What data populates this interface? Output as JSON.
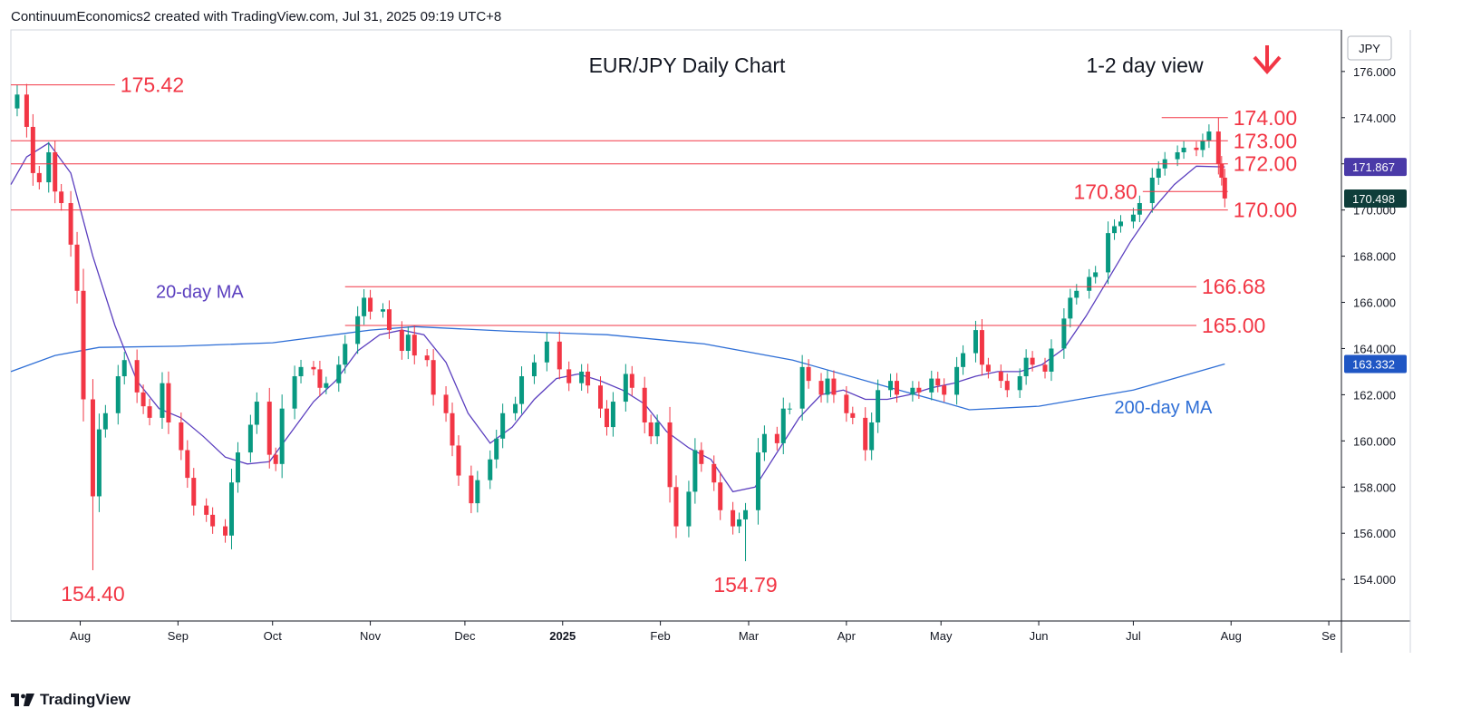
{
  "header": {
    "attribution": "ContinuumEconomics2 created with TradingView.com, Jul 31, 2025 09:19 UTC+8"
  },
  "footer": {
    "brand": "TradingView"
  },
  "chart_data": {
    "type": "candlestick",
    "title": "EUR/JPY Daily Chart",
    "subtitle": "1-2 day view",
    "currency": "JPY",
    "ylim": [
      152.2,
      177.8
    ],
    "y_ticks": [
      "176.000",
      "174.000",
      "172.000",
      "170.000",
      "168.000",
      "166.000",
      "164.000",
      "162.000",
      "160.000",
      "158.000",
      "156.000",
      "154.000"
    ],
    "x_range": [
      "2024-07-10",
      "2025-09-05"
    ],
    "x_ticks": [
      {
        "label": "Aug",
        "date": "2024-08-01",
        "bold": false
      },
      {
        "label": "Sep",
        "date": "2024-09-01",
        "bold": false
      },
      {
        "label": "Oct",
        "date": "2024-10-01",
        "bold": false
      },
      {
        "label": "Nov",
        "date": "2024-11-01",
        "bold": false
      },
      {
        "label": "Dec",
        "date": "2024-12-01",
        "bold": false
      },
      {
        "label": "2025",
        "date": "2025-01-01",
        "bold": true
      },
      {
        "label": "Feb",
        "date": "2025-02-01",
        "bold": false
      },
      {
        "label": "Mar",
        "date": "2025-03-01",
        "bold": false
      },
      {
        "label": "Apr",
        "date": "2025-04-01",
        "bold": false
      },
      {
        "label": "May",
        "date": "2025-05-01",
        "bold": false
      },
      {
        "label": "Jun",
        "date": "2025-06-01",
        "bold": false
      },
      {
        "label": "Jul",
        "date": "2025-07-01",
        "bold": false
      },
      {
        "label": "Aug",
        "date": "2025-08-01",
        "bold": false
      },
      {
        "label": "Se",
        "date": "2025-09-01",
        "bold": false
      }
    ],
    "closes": [
      {
        "d": "2024-07-10",
        "c": 174.4
      },
      {
        "d": "2024-07-12",
        "c": 175.0
      },
      {
        "d": "2024-07-15",
        "c": 173.6
      },
      {
        "d": "2024-07-17",
        "c": 171.6
      },
      {
        "d": "2024-07-19",
        "c": 171.2
      },
      {
        "d": "2024-07-22",
        "c": 172.5
      },
      {
        "d": "2024-07-24",
        "c": 170.8
      },
      {
        "d": "2024-07-26",
        "c": 170.3
      },
      {
        "d": "2024-07-29",
        "c": 168.5
      },
      {
        "d": "2024-07-31",
        "c": 166.5
      },
      {
        "d": "2024-08-02",
        "c": 161.8
      },
      {
        "d": "2024-08-05",
        "c": 157.6
      },
      {
        "d": "2024-08-07",
        "c": 160.5
      },
      {
        "d": "2024-08-09",
        "c": 161.2
      },
      {
        "d": "2024-08-13",
        "c": 162.8
      },
      {
        "d": "2024-08-15",
        "c": 163.5
      },
      {
        "d": "2024-08-19",
        "c": 162.1
      },
      {
        "d": "2024-08-21",
        "c": 161.5
      },
      {
        "d": "2024-08-23",
        "c": 161.0
      },
      {
        "d": "2024-08-27",
        "c": 162.5
      },
      {
        "d": "2024-08-29",
        "c": 160.8
      },
      {
        "d": "2024-09-02",
        "c": 159.6
      },
      {
        "d": "2024-09-04",
        "c": 158.4
      },
      {
        "d": "2024-09-06",
        "c": 157.2
      },
      {
        "d": "2024-09-10",
        "c": 156.8
      },
      {
        "d": "2024-09-12",
        "c": 156.3
      },
      {
        "d": "2024-09-16",
        "c": 155.9
      },
      {
        "d": "2024-09-18",
        "c": 158.2
      },
      {
        "d": "2024-09-20",
        "c": 159.5
      },
      {
        "d": "2024-09-24",
        "c": 160.7
      },
      {
        "d": "2024-09-26",
        "c": 161.7
      },
      {
        "d": "2024-09-30",
        "c": 159.4
      },
      {
        "d": "2024-10-02",
        "c": 159.0
      },
      {
        "d": "2024-10-04",
        "c": 161.4
      },
      {
        "d": "2024-10-08",
        "c": 162.8
      },
      {
        "d": "2024-10-10",
        "c": 163.2
      },
      {
        "d": "2024-10-14",
        "c": 163.1
      },
      {
        "d": "2024-10-16",
        "c": 162.3
      },
      {
        "d": "2024-10-18",
        "c": 162.5
      },
      {
        "d": "2024-10-22",
        "c": 163.3
      },
      {
        "d": "2024-10-24",
        "c": 164.2
      },
      {
        "d": "2024-10-28",
        "c": 165.4
      },
      {
        "d": "2024-10-30",
        "c": 166.2
      },
      {
        "d": "2024-11-01",
        "c": 165.6
      },
      {
        "d": "2024-11-05",
        "c": 165.7
      },
      {
        "d": "2024-11-07",
        "c": 164.8
      },
      {
        "d": "2024-11-11",
        "c": 163.9
      },
      {
        "d": "2024-11-13",
        "c": 164.6
      },
      {
        "d": "2024-11-15",
        "c": 163.7
      },
      {
        "d": "2024-11-19",
        "c": 163.5
      },
      {
        "d": "2024-11-21",
        "c": 162.0
      },
      {
        "d": "2024-11-25",
        "c": 161.2
      },
      {
        "d": "2024-11-27",
        "c": 159.8
      },
      {
        "d": "2024-11-29",
        "c": 158.5
      },
      {
        "d": "2024-12-03",
        "c": 157.3
      },
      {
        "d": "2024-12-05",
        "c": 158.3
      },
      {
        "d": "2024-12-09",
        "c": 159.2
      },
      {
        "d": "2024-12-11",
        "c": 160.1
      },
      {
        "d": "2024-12-13",
        "c": 161.2
      },
      {
        "d": "2024-12-17",
        "c": 161.6
      },
      {
        "d": "2024-12-19",
        "c": 162.8
      },
      {
        "d": "2024-12-23",
        "c": 163.4
      },
      {
        "d": "2024-12-27",
        "c": 164.3
      },
      {
        "d": "2024-12-31",
        "c": 163.1
      },
      {
        "d": "2025-01-03",
        "c": 162.5
      },
      {
        "d": "2025-01-07",
        "c": 163.0
      },
      {
        "d": "2025-01-09",
        "c": 162.4
      },
      {
        "d": "2025-01-13",
        "c": 161.4
      },
      {
        "d": "2025-01-15",
        "c": 160.6
      },
      {
        "d": "2025-01-17",
        "c": 161.7
      },
      {
        "d": "2025-01-21",
        "c": 162.9
      },
      {
        "d": "2025-01-23",
        "c": 162.3
      },
      {
        "d": "2025-01-27",
        "c": 160.8
      },
      {
        "d": "2025-01-29",
        "c": 160.2
      },
      {
        "d": "2025-01-31",
        "c": 160.8
      },
      {
        "d": "2025-02-04",
        "c": 158.0
      },
      {
        "d": "2025-02-06",
        "c": 156.3
      },
      {
        "d": "2025-02-10",
        "c": 157.8
      },
      {
        "d": "2025-02-12",
        "c": 159.6
      },
      {
        "d": "2025-02-14",
        "c": 159.0
      },
      {
        "d": "2025-02-18",
        "c": 158.2
      },
      {
        "d": "2025-02-20",
        "c": 157.0
      },
      {
        "d": "2025-02-24",
        "c": 156.3
      },
      {
        "d": "2025-02-26",
        "c": 156.6
      },
      {
        "d": "2025-02-28",
        "c": 157.0
      },
      {
        "d": "2025-03-04",
        "c": 159.5
      },
      {
        "d": "2025-03-06",
        "c": 160.3
      },
      {
        "d": "2025-03-10",
        "c": 159.9
      },
      {
        "d": "2025-03-12",
        "c": 161.4
      },
      {
        "d": "2025-03-14",
        "c": 161.4
      },
      {
        "d": "2025-03-18",
        "c": 163.2
      },
      {
        "d": "2025-03-20",
        "c": 162.6
      },
      {
        "d": "2025-03-24",
        "c": 162.0
      },
      {
        "d": "2025-03-26",
        "c": 162.7
      },
      {
        "d": "2025-03-28",
        "c": 162.0
      },
      {
        "d": "2025-04-01",
        "c": 161.2
      },
      {
        "d": "2025-04-03",
        "c": 161.0
      },
      {
        "d": "2025-04-07",
        "c": 159.6
      },
      {
        "d": "2025-04-09",
        "c": 160.8
      },
      {
        "d": "2025-04-11",
        "c": 162.2
      },
      {
        "d": "2025-04-15",
        "c": 162.6
      },
      {
        "d": "2025-04-17",
        "c": 162.0
      },
      {
        "d": "2025-04-22",
        "c": 162.3
      },
      {
        "d": "2025-04-24",
        "c": 162.1
      },
      {
        "d": "2025-04-28",
        "c": 162.7
      },
      {
        "d": "2025-04-30",
        "c": 162.4
      },
      {
        "d": "2025-05-02",
        "c": 162.0
      },
      {
        "d": "2025-05-06",
        "c": 163.2
      },
      {
        "d": "2025-05-08",
        "c": 163.8
      },
      {
        "d": "2025-05-12",
        "c": 164.8
      },
      {
        "d": "2025-05-14",
        "c": 163.3
      },
      {
        "d": "2025-05-16",
        "c": 163.0
      },
      {
        "d": "2025-05-20",
        "c": 162.6
      },
      {
        "d": "2025-05-22",
        "c": 162.2
      },
      {
        "d": "2025-05-26",
        "c": 162.8
      },
      {
        "d": "2025-05-28",
        "c": 163.6
      },
      {
        "d": "2025-05-30",
        "c": 163.3
      },
      {
        "d": "2025-06-03",
        "c": 163.0
      },
      {
        "d": "2025-06-05",
        "c": 164.0
      },
      {
        "d": "2025-06-09",
        "c": 165.3
      },
      {
        "d": "2025-06-11",
        "c": 166.2
      },
      {
        "d": "2025-06-13",
        "c": 166.5
      },
      {
        "d": "2025-06-17",
        "c": 167.1
      },
      {
        "d": "2025-06-19",
        "c": 167.3
      },
      {
        "d": "2025-06-23",
        "c": 169.0
      },
      {
        "d": "2025-06-25",
        "c": 169.3
      },
      {
        "d": "2025-06-27",
        "c": 169.5
      },
      {
        "d": "2025-07-01",
        "c": 169.8
      },
      {
        "d": "2025-07-03",
        "c": 170.3
      },
      {
        "d": "2025-07-07",
        "c": 171.4
      },
      {
        "d": "2025-07-09",
        "c": 171.8
      },
      {
        "d": "2025-07-11",
        "c": 172.2
      },
      {
        "d": "2025-07-15",
        "c": 172.5
      },
      {
        "d": "2025-07-17",
        "c": 172.7
      },
      {
        "d": "2025-07-21",
        "c": 172.6
      },
      {
        "d": "2025-07-23",
        "c": 173.0
      },
      {
        "d": "2025-07-25",
        "c": 173.4
      },
      {
        "d": "2025-07-28",
        "c": 172.0
      },
      {
        "d": "2025-07-29",
        "c": 171.4
      },
      {
        "d": "2025-07-30",
        "c": 170.5
      }
    ],
    "extremes": [
      {
        "d": "2024-07-12",
        "v": 175.42
      },
      {
        "d": "2024-08-05",
        "v": 154.4
      },
      {
        "d": "2025-02-28",
        "v": 154.79
      },
      {
        "d": "2025-07-28",
        "v": 174.0
      }
    ],
    "ma20": [
      {
        "d": "2024-07-10",
        "v": 171.1
      },
      {
        "d": "2024-07-15",
        "v": 172.3
      },
      {
        "d": "2024-07-22",
        "v": 172.9
      },
      {
        "d": "2024-07-29",
        "v": 171.6
      },
      {
        "d": "2024-08-05",
        "v": 168.0
      },
      {
        "d": "2024-08-12",
        "v": 165.0
      },
      {
        "d": "2024-08-19",
        "v": 162.6
      },
      {
        "d": "2024-08-26",
        "v": 161.4
      },
      {
        "d": "2024-09-02",
        "v": 161.0
      },
      {
        "d": "2024-09-09",
        "v": 160.2
      },
      {
        "d": "2024-09-16",
        "v": 159.3
      },
      {
        "d": "2024-09-23",
        "v": 159.0
      },
      {
        "d": "2024-09-30",
        "v": 159.1
      },
      {
        "d": "2024-10-07",
        "v": 160.4
      },
      {
        "d": "2024-10-14",
        "v": 161.7
      },
      {
        "d": "2024-10-21",
        "v": 162.6
      },
      {
        "d": "2024-10-28",
        "v": 163.9
      },
      {
        "d": "2024-11-04",
        "v": 164.6
      },
      {
        "d": "2024-11-11",
        "v": 164.8
      },
      {
        "d": "2024-11-18",
        "v": 164.6
      },
      {
        "d": "2024-11-25",
        "v": 163.4
      },
      {
        "d": "2024-12-02",
        "v": 161.2
      },
      {
        "d": "2024-12-09",
        "v": 159.9
      },
      {
        "d": "2024-12-16",
        "v": 160.6
      },
      {
        "d": "2024-12-23",
        "v": 161.8
      },
      {
        "d": "2024-12-30",
        "v": 162.7
      },
      {
        "d": "2025-01-06",
        "v": 162.9
      },
      {
        "d": "2025-01-13",
        "v": 162.6
      },
      {
        "d": "2025-01-20",
        "v": 162.2
      },
      {
        "d": "2025-01-27",
        "v": 161.6
      },
      {
        "d": "2025-02-03",
        "v": 160.4
      },
      {
        "d": "2025-02-10",
        "v": 159.7
      },
      {
        "d": "2025-02-17",
        "v": 159.2
      },
      {
        "d": "2025-02-24",
        "v": 157.8
      },
      {
        "d": "2025-03-03",
        "v": 158.0
      },
      {
        "d": "2025-03-10",
        "v": 159.5
      },
      {
        "d": "2025-03-17",
        "v": 161.0
      },
      {
        "d": "2025-03-24",
        "v": 162.0
      },
      {
        "d": "2025-03-31",
        "v": 162.2
      },
      {
        "d": "2025-04-07",
        "v": 161.8
      },
      {
        "d": "2025-04-14",
        "v": 161.8
      },
      {
        "d": "2025-04-21",
        "v": 162.0
      },
      {
        "d": "2025-04-28",
        "v": 162.3
      },
      {
        "d": "2025-05-05",
        "v": 162.5
      },
      {
        "d": "2025-05-12",
        "v": 162.8
      },
      {
        "d": "2025-05-19",
        "v": 163.0
      },
      {
        "d": "2025-05-26",
        "v": 163.0
      },
      {
        "d": "2025-06-02",
        "v": 163.3
      },
      {
        "d": "2025-06-09",
        "v": 164.0
      },
      {
        "d": "2025-06-16",
        "v": 165.4
      },
      {
        "d": "2025-06-23",
        "v": 167.0
      },
      {
        "d": "2025-06-30",
        "v": 168.6
      },
      {
        "d": "2025-07-07",
        "v": 170.0
      },
      {
        "d": "2025-07-14",
        "v": 171.1
      },
      {
        "d": "2025-07-21",
        "v": 171.9
      },
      {
        "d": "2025-07-30",
        "v": 171.867
      }
    ],
    "ma200": [
      {
        "d": "2024-07-10",
        "v": 163.0
      },
      {
        "d": "2024-07-24",
        "v": 163.7
      },
      {
        "d": "2024-08-07",
        "v": 164.05
      },
      {
        "d": "2024-09-01",
        "v": 164.1
      },
      {
        "d": "2024-10-01",
        "v": 164.25
      },
      {
        "d": "2024-11-01",
        "v": 164.8
      },
      {
        "d": "2024-11-15",
        "v": 164.95
      },
      {
        "d": "2024-12-15",
        "v": 164.75
      },
      {
        "d": "2025-01-15",
        "v": 164.6
      },
      {
        "d": "2025-02-15",
        "v": 164.2
      },
      {
        "d": "2025-03-15",
        "v": 163.5
      },
      {
        "d": "2025-04-15",
        "v": 162.3
      },
      {
        "d": "2025-05-01",
        "v": 161.7
      },
      {
        "d": "2025-05-10",
        "v": 161.35
      },
      {
        "d": "2025-06-01",
        "v": 161.5
      },
      {
        "d": "2025-07-01",
        "v": 162.2
      },
      {
        "d": "2025-07-30",
        "v": 163.332
      }
    ],
    "levels": [
      {
        "value": 175.42,
        "label": "175.42",
        "from": "2024-07-10",
        "to": "2024-08-12",
        "label_at": "2024-08-12",
        "label_side": "right"
      },
      {
        "value": 174.0,
        "label": "174.00",
        "from": "2025-07-10",
        "to": "2025-07-31",
        "label_at": "2025-07-31",
        "label_side": "right"
      },
      {
        "value": 173.0,
        "label": "173.00",
        "from": "2024-07-10",
        "to": "2025-07-31",
        "label_at": "2025-07-31",
        "label_side": "right"
      },
      {
        "value": 172.0,
        "label": "172.00",
        "from": "2024-07-10",
        "to": "2025-07-31",
        "label_at": "2025-07-31",
        "label_side": "right"
      },
      {
        "value": 170.8,
        "label": "170.80",
        "from": "2025-07-04",
        "to": "2025-07-31",
        "label_at": "2025-07-04",
        "label_side": "left"
      },
      {
        "value": 170.0,
        "label": "170.00",
        "from": "2024-07-10",
        "to": "2025-07-31",
        "label_at": "2025-07-31",
        "label_side": "right"
      },
      {
        "value": 166.68,
        "label": "166.68",
        "from": "2024-10-24",
        "to": "2025-07-21",
        "label_at": "2025-07-21",
        "label_side": "right"
      },
      {
        "value": 165.0,
        "label": "165.00",
        "from": "2024-10-24",
        "to": "2025-07-21",
        "label_at": "2025-07-21",
        "label_side": "right"
      }
    ],
    "annotations": [
      {
        "text": "154.40",
        "d": "2024-08-05",
        "v": 154.4,
        "pos": "below"
      },
      {
        "text": "154.79",
        "d": "2025-02-28",
        "v": 154.79,
        "pos": "below"
      },
      {
        "text": "20-day MA",
        "d": "2024-08-25",
        "v": 166.2,
        "color": "#5b3fbf"
      },
      {
        "text": "200-day MA",
        "d": "2025-06-25",
        "v": 161.2,
        "color": "#2f6fd6"
      }
    ],
    "price_tags": [
      {
        "value": 171.867,
        "label": "171.867",
        "color": "#4a3aa8"
      },
      {
        "value": 170.498,
        "label": "170.498",
        "color": "#0f3d3a"
      },
      {
        "value": 163.332,
        "label": "163.332",
        "color": "#1f56c4"
      }
    ],
    "colors": {
      "up": "#089981",
      "down": "#f23645",
      "level": "#f23645",
      "ma20": "#5b3fbf",
      "ma200": "#2f6fd6",
      "arrow": "#f23645"
    },
    "legend": "none",
    "grid": false,
    "direction_arrow": "down"
  }
}
